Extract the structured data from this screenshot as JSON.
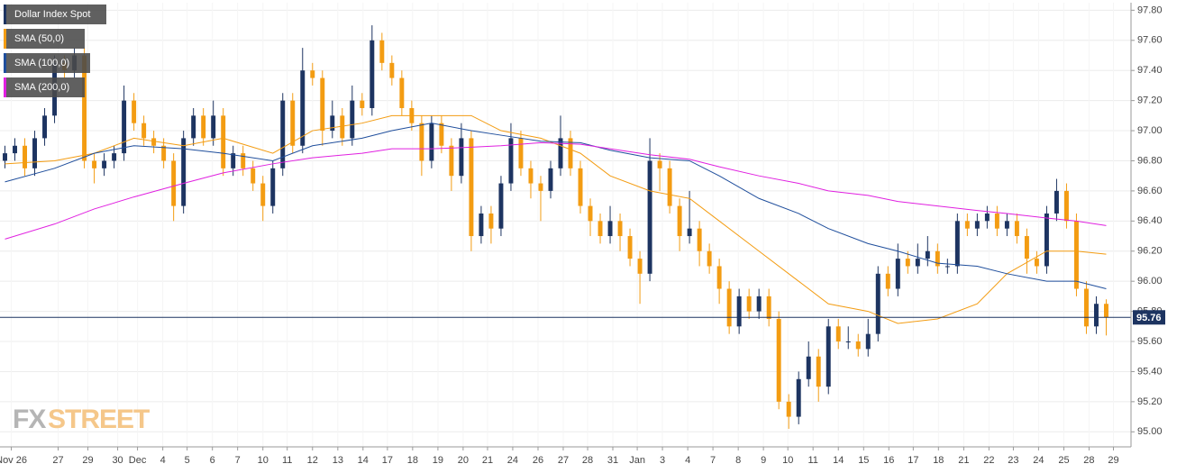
{
  "chart_data": {
    "type": "candlestick",
    "watermark": [
      "FX",
      "STREET"
    ],
    "xlim": [
      -0.5,
      113.5
    ],
    "xticks": [
      {
        "value": 0.64,
        "label": "Nov 26"
      },
      {
        "value": 5.36,
        "label": "27"
      },
      {
        "value": 8.36,
        "label": "29"
      },
      {
        "value": 11.36,
        "label": "30"
      },
      {
        "value": 13.36,
        "label": "Dec"
      },
      {
        "value": 15.91,
        "label": "4"
      },
      {
        "value": 18.36,
        "label": "5"
      },
      {
        "value": 20.91,
        "label": "6"
      },
      {
        "value": 23.45,
        "label": "7"
      },
      {
        "value": 26,
        "label": "10"
      },
      {
        "value": 28.45,
        "label": "11"
      },
      {
        "value": 31,
        "label": "12"
      },
      {
        "value": 33.55,
        "label": "13"
      },
      {
        "value": 36.09,
        "label": "14"
      },
      {
        "value": 38.55,
        "label": "17"
      },
      {
        "value": 41.09,
        "label": "18"
      },
      {
        "value": 43.64,
        "label": "19"
      },
      {
        "value": 46.18,
        "label": "20"
      },
      {
        "value": 48.64,
        "label": "21"
      },
      {
        "value": 51.18,
        "label": "24"
      },
      {
        "value": 53.73,
        "label": "26"
      },
      {
        "value": 56.27,
        "label": "27"
      },
      {
        "value": 58.73,
        "label": "28"
      },
      {
        "value": 61.27,
        "label": "31"
      },
      {
        "value": 63.73,
        "label": "Jan"
      },
      {
        "value": 66.27,
        "label": "3"
      },
      {
        "value": 68.82,
        "label": "4"
      },
      {
        "value": 71.36,
        "label": "7"
      },
      {
        "value": 73.91,
        "label": "8"
      },
      {
        "value": 76.45,
        "label": "9"
      },
      {
        "value": 78.91,
        "label": "10"
      },
      {
        "value": 81.45,
        "label": "11"
      },
      {
        "value": 84,
        "label": "14"
      },
      {
        "value": 86.55,
        "label": "15"
      },
      {
        "value": 89.09,
        "label": "16"
      },
      {
        "value": 91.55,
        "label": "17"
      },
      {
        "value": 94.09,
        "label": "18"
      },
      {
        "value": 96.64,
        "label": "21"
      },
      {
        "value": 99.18,
        "label": "22"
      },
      {
        "value": 101.64,
        "label": "23"
      },
      {
        "value": 104.18,
        "label": "24"
      },
      {
        "value": 106.73,
        "label": "25"
      },
      {
        "value": 109.27,
        "label": "28"
      },
      {
        "value": 111.73,
        "label": "29"
      }
    ],
    "ylim": [
      94.9,
      97.85
    ],
    "yticks": [
      {
        "value": 95.0,
        "label": "95.00"
      },
      {
        "value": 95.2,
        "label": "95.20"
      },
      {
        "value": 95.4,
        "label": "95.40"
      },
      {
        "value": 95.6,
        "label": "95.60"
      },
      {
        "value": 95.8,
        "label": "95.80"
      },
      {
        "value": 96.0,
        "label": "96.00"
      },
      {
        "value": 96.2,
        "label": "96.20"
      },
      {
        "value": 96.4,
        "label": "96.40"
      },
      {
        "value": 96.6,
        "label": "96.60"
      },
      {
        "value": 96.8,
        "label": "96.80"
      },
      {
        "value": 97.0,
        "label": "97.00"
      },
      {
        "value": 97.2,
        "label": "97.20"
      },
      {
        "value": 97.4,
        "label": "97.40"
      },
      {
        "value": 97.6,
        "label": "97.60"
      },
      {
        "value": 97.8,
        "label": "97.80"
      }
    ],
    "grid": true,
    "last_price": 95.76,
    "last_price_color": "#1d3461",
    "series": [
      {
        "name": "Dollar Index Spot",
        "color": "#1d3461",
        "up_color": "#1d3461",
        "down_color": "#f39c12",
        "open": [
          96.8,
          96.85,
          96.9,
          96.75,
          96.95,
          97.1,
          97.45,
          97.4,
          97.5,
          96.8,
          96.75,
          96.8,
          96.85,
          97.2,
          97.05,
          96.95,
          96.9,
          96.8,
          96.5,
          96.95,
          97.1,
          96.95,
          97.1,
          96.75,
          96.85,
          96.75,
          96.65,
          96.5,
          96.75,
          97.2,
          96.9,
          97.4,
          97.35,
          97.0,
          97.1,
          96.95,
          97.2,
          97.15,
          97.6,
          97.45,
          97.35,
          97.15,
          97.05,
          96.8,
          97.05,
          96.9,
          96.7,
          96.95,
          96.3,
          96.45,
          96.35,
          96.65,
          96.95,
          96.75,
          96.65,
          96.6,
          96.75,
          96.95,
          96.75,
          96.5,
          96.4,
          96.3,
          96.4,
          96.3,
          96.15,
          96.05,
          96.8,
          96.75,
          96.5,
          96.3,
          96.35,
          96.2,
          96.1,
          95.95,
          95.7,
          95.9,
          95.8,
          95.9,
          95.75,
          95.2,
          95.1,
          95.35,
          95.5,
          95.3,
          95.7,
          95.6,
          95.6,
          95.55,
          95.65,
          96.05,
          95.95,
          96.15,
          96.1,
          96.15,
          96.2,
          96.1,
          96.1,
          96.4,
          96.35,
          96.4,
          96.45,
          96.35,
          96.4,
          96.3,
          96.15,
          96.1,
          96.45,
          96.6,
          96.4,
          95.95,
          95.7,
          95.85
        ],
        "high": [
          96.9,
          96.95,
          96.95,
          97.0,
          97.15,
          97.5,
          97.5,
          97.55,
          97.55,
          96.85,
          96.85,
          96.9,
          97.3,
          97.25,
          97.1,
          97.0,
          96.95,
          96.85,
          97.0,
          97.15,
          97.15,
          97.2,
          97.15,
          96.9,
          96.9,
          96.8,
          96.7,
          96.8,
          97.25,
          97.25,
          97.55,
          97.45,
          97.4,
          97.2,
          97.15,
          97.3,
          97.25,
          97.7,
          97.65,
          97.5,
          97.4,
          97.2,
          97.1,
          97.1,
          97.1,
          96.95,
          97.05,
          97.0,
          96.5,
          96.5,
          96.7,
          97.05,
          97.0,
          96.8,
          96.7,
          96.8,
          97.1,
          97.0,
          96.8,
          96.55,
          96.45,
          96.5,
          96.45,
          96.35,
          96.2,
          96.95,
          96.85,
          96.8,
          96.55,
          96.6,
          96.4,
          96.25,
          96.15,
          96.0,
          95.95,
          95.95,
          95.95,
          95.95,
          95.8,
          95.25,
          95.4,
          95.6,
          95.55,
          95.75,
          95.75,
          95.7,
          95.65,
          95.75,
          96.1,
          96.1,
          96.25,
          96.2,
          96.25,
          96.3,
          96.25,
          96.15,
          96.45,
          96.45,
          96.45,
          96.5,
          96.5,
          96.45,
          96.45,
          96.35,
          96.2,
          96.5,
          96.68,
          96.65,
          96.45,
          96.0,
          95.9,
          95.88
        ],
        "low": [
          96.75,
          96.8,
          96.7,
          96.7,
          96.9,
          97.05,
          97.35,
          97.35,
          96.75,
          96.65,
          96.7,
          96.75,
          96.8,
          97.0,
          96.9,
          96.85,
          96.75,
          96.4,
          96.45,
          96.9,
          96.9,
          96.9,
          96.7,
          96.7,
          96.7,
          96.6,
          96.4,
          96.45,
          96.7,
          96.85,
          96.85,
          97.3,
          96.9,
          96.95,
          96.9,
          96.9,
          97.1,
          97.1,
          97.4,
          97.3,
          97.1,
          97.0,
          96.7,
          96.75,
          96.85,
          96.6,
          96.65,
          96.2,
          96.25,
          96.25,
          96.3,
          96.6,
          96.7,
          96.55,
          96.4,
          96.55,
          96.7,
          96.7,
          96.45,
          96.3,
          96.25,
          96.25,
          96.2,
          96.1,
          95.85,
          96.0,
          96.6,
          96.45,
          96.2,
          96.25,
          96.1,
          96.05,
          95.85,
          95.65,
          95.65,
          95.75,
          95.75,
          95.7,
          95.15,
          95.02,
          95.05,
          95.3,
          95.2,
          95.25,
          95.55,
          95.55,
          95.5,
          95.5,
          95.6,
          95.9,
          95.9,
          96.05,
          96.05,
          96.1,
          96.05,
          96.05,
          96.05,
          96.3,
          96.3,
          96.35,
          96.3,
          96.3,
          96.25,
          96.05,
          96.05,
          96.05,
          96.4,
          96.35,
          95.9,
          95.65,
          95.65,
          95.64
        ],
        "close": [
          96.85,
          96.9,
          96.75,
          96.95,
          97.1,
          97.45,
          97.4,
          97.5,
          96.8,
          96.75,
          96.8,
          96.85,
          97.2,
          97.05,
          96.95,
          96.9,
          96.8,
          96.5,
          96.95,
          97.1,
          96.95,
          97.1,
          96.75,
          96.85,
          96.75,
          96.65,
          96.5,
          96.75,
          97.2,
          96.9,
          97.4,
          97.35,
          97.0,
          97.1,
          96.95,
          97.2,
          97.15,
          97.6,
          97.45,
          97.35,
          97.15,
          97.05,
          96.8,
          97.05,
          96.9,
          96.7,
          96.95,
          96.3,
          96.45,
          96.35,
          96.65,
          96.95,
          96.75,
          96.65,
          96.6,
          96.75,
          96.95,
          96.75,
          96.5,
          96.4,
          96.3,
          96.4,
          96.3,
          96.15,
          96.05,
          96.8,
          96.75,
          96.5,
          96.3,
          96.35,
          96.2,
          96.1,
          95.95,
          95.7,
          95.9,
          95.8,
          95.9,
          95.75,
          95.2,
          95.1,
          95.35,
          95.5,
          95.3,
          95.7,
          95.6,
          95.6,
          95.55,
          95.65,
          96.05,
          95.95,
          96.15,
          96.1,
          96.15,
          96.2,
          96.1,
          96.1,
          96.4,
          96.35,
          96.4,
          96.45,
          96.35,
          96.4,
          96.3,
          96.15,
          96.1,
          96.45,
          96.6,
          96.4,
          95.95,
          95.7,
          95.85,
          95.76
        ]
      },
      {
        "name": "SMA (50,0)",
        "color": "#f39c12",
        "x": [
          0,
          5,
          9,
          13,
          18,
          22,
          27,
          31,
          36,
          39,
          43,
          47,
          50,
          54,
          58,
          61,
          65,
          69,
          72,
          76,
          80,
          83,
          87,
          90,
          94,
          98,
          101,
          105,
          108,
          111
        ],
        "values": [
          96.78,
          96.8,
          96.85,
          96.95,
          96.9,
          96.95,
          96.85,
          97.0,
          97.05,
          97.1,
          97.1,
          97.1,
          97.0,
          96.95,
          96.85,
          96.7,
          96.6,
          96.55,
          96.4,
          96.2,
          96.0,
          95.85,
          95.8,
          95.72,
          95.75,
          95.85,
          96.05,
          96.2,
          96.2,
          96.18
        ]
      },
      {
        "name": "SMA (100,0)",
        "color": "#1f4e9c",
        "x": [
          0,
          5,
          9,
          13,
          18,
          22,
          27,
          31,
          36,
          39,
          43,
          47,
          50,
          54,
          58,
          61,
          65,
          69,
          72,
          76,
          80,
          83,
          87,
          90,
          94,
          98,
          101,
          105,
          108,
          111
        ],
        "values": [
          96.66,
          96.75,
          96.85,
          96.9,
          96.88,
          96.85,
          96.8,
          96.9,
          96.95,
          97.0,
          97.05,
          97.0,
          96.97,
          96.93,
          96.92,
          96.87,
          96.82,
          96.8,
          96.7,
          96.55,
          96.45,
          96.35,
          96.25,
          96.2,
          96.12,
          96.1,
          96.05,
          96.0,
          96.0,
          95.95
        ]
      },
      {
        "name": "SMA (200,0)",
        "color": "#e020e0",
        "x": [
          0,
          5,
          9,
          13,
          18,
          22,
          27,
          31,
          36,
          39,
          43,
          47,
          50,
          54,
          58,
          61,
          65,
          69,
          72,
          76,
          80,
          83,
          87,
          90,
          94,
          98,
          101,
          105,
          108,
          111
        ],
        "values": [
          96.28,
          96.38,
          96.48,
          96.56,
          96.65,
          96.72,
          96.78,
          96.82,
          96.85,
          96.88,
          96.88,
          96.89,
          96.9,
          96.92,
          96.91,
          96.88,
          96.84,
          96.81,
          96.76,
          96.7,
          96.65,
          96.6,
          96.57,
          96.53,
          96.5,
          96.47,
          96.45,
          96.42,
          96.4,
          96.37
        ]
      }
    ]
  }
}
